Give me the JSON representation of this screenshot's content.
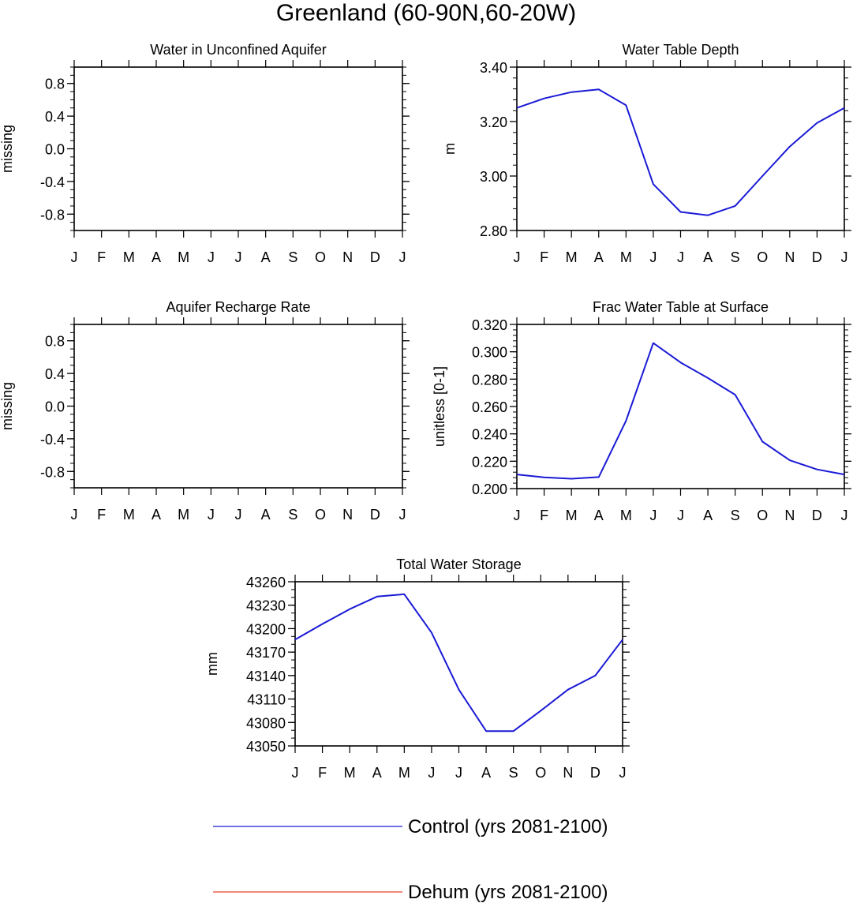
{
  "figure": {
    "title": "Greenland (60-90N,60-20W)",
    "x_tick_labels": [
      "J",
      "F",
      "M",
      "A",
      "M",
      "J",
      "J",
      "A",
      "S",
      "O",
      "N",
      "D",
      "J"
    ]
  },
  "chart_data": [
    {
      "id": "water-in-unconfined-aquifer",
      "type": "line",
      "title": "Water in Unconfined Aquifer",
      "ylabel": "missing",
      "ylim": [
        -1.0,
        1.0
      ],
      "yticks": [
        0.8,
        0.4,
        0.0,
        -0.4,
        -0.8
      ],
      "ytick_labels": [
        "0.8",
        "0.4",
        "0.0",
        "-0.4",
        "-0.8"
      ],
      "yminor_step": 0.1,
      "series": []
    },
    {
      "id": "water-table-depth",
      "type": "line",
      "title": "Water Table Depth",
      "ylabel": "m",
      "ylim": [
        2.8,
        3.4
      ],
      "yticks": [
        2.8,
        3.0,
        3.2,
        3.4
      ],
      "ytick_labels": [
        "2.80",
        "3.00",
        "3.20",
        "3.40"
      ],
      "yminor_step": 0.04,
      "series": [
        {
          "name": "Control (yrs 2081-2100)",
          "values": [
            3.25,
            3.285,
            3.308,
            3.318,
            3.26,
            2.97,
            2.868,
            2.856,
            2.89,
            3.0,
            3.108,
            3.195,
            3.25
          ]
        }
      ]
    },
    {
      "id": "aquifer-recharge-rate",
      "type": "line",
      "title": "Aquifer Recharge Rate",
      "ylabel": "missing",
      "ylim": [
        -1.0,
        1.0
      ],
      "yticks": [
        0.8,
        0.4,
        0.0,
        -0.4,
        -0.8
      ],
      "ytick_labels": [
        "0.8",
        "0.4",
        "0.0",
        "-0.4",
        "-0.8"
      ],
      "yminor_step": 0.1,
      "series": []
    },
    {
      "id": "frac-water-table-at-surface",
      "type": "line",
      "title": "Frac Water Table at Surface",
      "ylabel": "unitless [0-1]",
      "ylim": [
        0.2,
        0.32
      ],
      "yticks": [
        0.2,
        0.22,
        0.24,
        0.26,
        0.28,
        0.3,
        0.32
      ],
      "ytick_labels": [
        "0.200",
        "0.220",
        "0.240",
        "0.260",
        "0.280",
        "0.300",
        "0.320"
      ],
      "yminor_step": 0.004,
      "series": [
        {
          "name": "Control (yrs 2081-2100)",
          "values": [
            0.2103,
            0.2082,
            0.2072,
            0.2084,
            0.2495,
            0.3064,
            0.2922,
            0.2808,
            0.2686,
            0.2343,
            0.2207,
            0.214,
            0.2103
          ]
        }
      ]
    },
    {
      "id": "total-water-storage",
      "type": "line",
      "title": "Total Water Storage",
      "ylabel": "mm",
      "ylim": [
        43050,
        43260
      ],
      "yticks": [
        43050,
        43080,
        43110,
        43140,
        43170,
        43200,
        43230,
        43260
      ],
      "ytick_labels": [
        "43050",
        "43080",
        "43110",
        "43140",
        "43170",
        "43200",
        "43230",
        "43260"
      ],
      "yminor_step": 10,
      "series": [
        {
          "name": "Control (yrs 2081-2100)",
          "values": [
            43186,
            43206,
            43225,
            43241,
            43244,
            43195,
            43122,
            43069,
            43069,
            43095,
            43122,
            43140,
            43186
          ]
        }
      ]
    }
  ],
  "legend": {
    "placement": "bottom-center",
    "items": [
      {
        "label": "Control (yrs 2081-2100)",
        "color": "#1a1ad6"
      },
      {
        "label": "Dehum (yrs 2081-2100)",
        "color": "#e8412f"
      }
    ]
  }
}
